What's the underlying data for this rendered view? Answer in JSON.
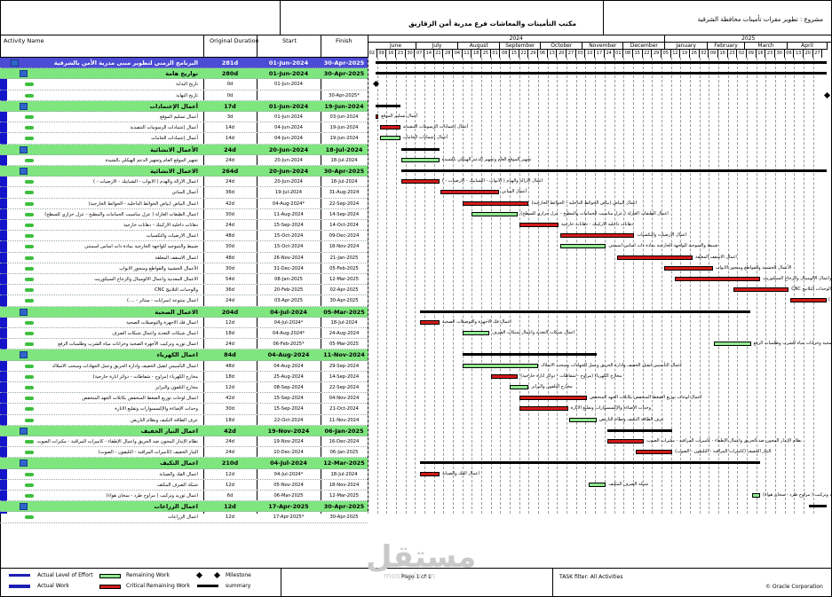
{
  "header": {
    "title": "مكتب التأمينات والمعاشات فرع مدرية أمن الزقازيق",
    "project": "مشروع : تطوير مقرات تأمينات محافظة الشرقية"
  },
  "columns": {
    "activity": "Activity Name",
    "duration": "Original Duration",
    "start": "Start",
    "finish": "Finish"
  },
  "timeline": {
    "years": [
      "2024",
      "2025"
    ],
    "months": [
      "June",
      "July",
      "August",
      "September",
      "October",
      "November",
      "December",
      "January",
      "February",
      "March",
      "April"
    ],
    "weeks": [
      "02",
      "09",
      "16",
      "23",
      "30",
      "07",
      "14",
      "21",
      "28",
      "04",
      "11",
      "18",
      "25",
      "01",
      "08",
      "15",
      "22",
      "29",
      "06",
      "13",
      "20",
      "27",
      "03",
      "10",
      "17",
      "24",
      "01",
      "08",
      "15",
      "22",
      "29",
      "05",
      "12",
      "19",
      "26",
      "02",
      "09",
      "16",
      "23",
      "02",
      "09",
      "16",
      "23",
      "30",
      "06",
      "13",
      "20",
      "27"
    ]
  },
  "rows": [
    {
      "level": "wbs1",
      "name": "البرنامج الزمني لتطوير مبنى مدرية الأمن بالشرقية",
      "duration": "281d",
      "start": "01-Jun-2024",
      "finish": "30-Apr-2025"
    },
    {
      "level": "wbs2",
      "name": "تواريخ هامة",
      "duration": "280d",
      "start": "01-Jun-2024",
      "finish": "30-Apr-2025"
    },
    {
      "level": "task",
      "name": "تاريخ البداية",
      "duration": "0d",
      "start": "01-Jun-2024",
      "finish": ""
    },
    {
      "level": "task",
      "name": "تاريخ النهاية",
      "duration": "0d",
      "start": "",
      "finish": "30-Apr-2025*"
    },
    {
      "level": "wbs2",
      "name": "أعمال الإعتمادات",
      "duration": "17d",
      "start": "01-Jun-2024",
      "finish": "19-Jun-2024"
    },
    {
      "level": "task",
      "name": "أعمال تسليم الموقع",
      "duration": "3d",
      "start": "01-Jun-2024",
      "finish": "03-Jun-2024"
    },
    {
      "level": "task",
      "name": "أعمال إعتمادات الرسومات التنفيذية",
      "duration": "14d",
      "start": "04-Jun-2024",
      "finish": "19-Jun-2024"
    },
    {
      "level": "task",
      "name": "أعمال إعتمادات الخامات",
      "duration": "14d",
      "start": "04-Jun-2024",
      "finish": "19-Jun-2024"
    },
    {
      "level": "wbs2",
      "name": "الأعمال الانشائية",
      "duration": "24d",
      "start": "20-Jun-2024",
      "finish": "18-Jul-2024"
    },
    {
      "level": "task",
      "name": "تجهيز الموقع العام وتجهيز الدعم الهيكلي بالشيدة",
      "duration": "24d",
      "start": "20-Jun-2024",
      "finish": "18-Jul-2024"
    },
    {
      "level": "wbs2",
      "name": "الاعمال الانشائية",
      "duration": "264d",
      "start": "20-Jun-2024",
      "finish": "30-Apr-2025"
    },
    {
      "level": "task",
      "name": "اعمال الازالة والهدم ( الابواب - الشبابيك - الارضيات - )",
      "duration": "24d",
      "start": "20-Jun-2024",
      "finish": "18-Jul-2024"
    },
    {
      "level": "task",
      "name": "أعمال المباني",
      "duration": "36d",
      "start": "19-Jul-2024",
      "finish": "31-Aug-2024"
    },
    {
      "level": "task",
      "name": "اعمال البياض (بياض الحوائط الداخلية - الحوائط الخارجية)",
      "duration": "42d",
      "start": "04-Aug-2024*",
      "finish": "22-Sep-2024"
    },
    {
      "level": "task",
      "name": "اعمال الطبقات العازلة ( عزل مناسيب الحمامات والمطبخ - عزل حراري للسطح)",
      "duration": "30d",
      "start": "11-Aug-2024",
      "finish": "14-Sep-2024"
    },
    {
      "level": "task",
      "name": "دهانات داخلية الاركيتك - دهانات خارجية",
      "duration": "24d",
      "start": "15-Sep-2024",
      "finish": "14-Oct-2024"
    },
    {
      "level": "task",
      "name": "اعمال الارضيات والتكسيات",
      "duration": "48d",
      "start": "15-Oct-2024",
      "finish": "09-Dec-2024"
    },
    {
      "level": "task",
      "name": "ضبيط والتموجيد للواجهة الخارجية بمادة ذات اساس اسمنتي",
      "duration": "30d",
      "start": "15-Oct-2024",
      "finish": "18-Nov-2024"
    },
    {
      "level": "task",
      "name": "اعمال الاسقف المعلقة",
      "duration": "48d",
      "start": "26-Nov-2024",
      "finish": "21-Jan-2025"
    },
    {
      "level": "task",
      "name": "الأعمال الخشبية والقواطع ومنجور الابواب",
      "duration": "30d",
      "start": "31-Dec-2024",
      "finish": "05-Feb-2025"
    },
    {
      "level": "task",
      "name": "الاعمال المعدنية واعمال الالوميتال والزجاج السيكوريت",
      "duration": "54d",
      "start": "08-Jan-2025",
      "finish": "12-Mar-2025"
    },
    {
      "level": "task",
      "name": "والوحدات التلانيج CNC",
      "duration": "36d",
      "start": "20-Feb-2025",
      "finish": "02-Apr-2025"
    },
    {
      "level": "task",
      "name": "اعمال متنوعة (سرايات - ستائر - ....)",
      "duration": "24d",
      "start": "03-Apr-2025",
      "finish": "30-Apr-2025"
    },
    {
      "level": "wbs2",
      "name": "الاعمال الصحية",
      "duration": "204d",
      "start": "04-Jul-2024",
      "finish": "05-Mar-2025"
    },
    {
      "level": "task",
      "name": "اعمال فك الاجهزة والتوصيلات الصحية",
      "duration": "12d",
      "start": "04-Jul-2024*",
      "finish": "18-Jul-2024"
    },
    {
      "level": "task",
      "name": "اعمال شبكات التغذية واعمال شبكات الصرف",
      "duration": "18d",
      "start": "04-Aug-2024*",
      "finish": "24-Aug-2024"
    },
    {
      "level": "task",
      "name": "اعمال توريد وتركيب الأجهزة الصحية وخزانات مياه الشرب وطلمبات الرفع",
      "duration": "24d",
      "start": "06-Feb-2025*",
      "finish": "05-Mar-2025"
    },
    {
      "level": "wbs2",
      "name": "اعمال الكهرباء",
      "duration": "84d",
      "start": "04-Aug-2024",
      "finish": "11-Nov-2024"
    },
    {
      "level": "task",
      "name": "اعمال التأسيس لتقيل الخفيف وادارة الحريق وعمل الجهادات وسحب الاسلاك",
      "duration": "48d",
      "start": "04-Aug-2024",
      "finish": "29-Sep-2024"
    },
    {
      "level": "task",
      "name": "مخارج الكهرباء (مراوح - شفاطات - دوائر انارة خارجية)",
      "duration": "18d",
      "start": "25-Aug-2024",
      "finish": "14-Sep-2024"
    },
    {
      "level": "task",
      "name": "مخارج التلفون والبرايز",
      "duration": "12d",
      "start": "08-Sep-2024",
      "finish": "22-Sep-2024"
    },
    {
      "level": "task",
      "name": "اعمال لوحات توزيع الضغط المنخفض بكابلات الجهد المنخفض",
      "duration": "42d",
      "start": "15-Sep-2024",
      "finish": "04-Nov-2024"
    },
    {
      "level": "task",
      "name": "وحدات الإضاءة والإكسسوارات وتقليع الانارة",
      "duration": "30d",
      "start": "15-Sep-2024",
      "finish": "21-Oct-2024"
    },
    {
      "level": "task",
      "name": "عرف الطاقة التكيف ونظام التاريض",
      "duration": "18d",
      "start": "22-Oct-2024",
      "finish": "11-Nov-2024"
    },
    {
      "level": "wbs2",
      "name": "اعمال التيار الخفيف",
      "duration": "42d",
      "start": "19-Nov-2024",
      "finish": "06-Jan-2025"
    },
    {
      "level": "task",
      "name": "نظام الإنذار المحون ضد الحريق واعمال الإطفاء - كاميرات المراقبة - مكبرات الصوت",
      "duration": "24d",
      "start": "19-Nov-2024",
      "finish": "16-Dec-2024"
    },
    {
      "level": "task",
      "name": "التيار الخفيف (كاميرات المراقبة - التليفون - الصوت)",
      "duration": "24d",
      "start": "10-Dec-2024",
      "finish": "06-Jan-2025"
    },
    {
      "level": "wbs2",
      "name": "اعمال التكيف",
      "duration": "210d",
      "start": "04-Jul-2024",
      "finish": "12-Mar-2025"
    },
    {
      "level": "task",
      "name": "اعمال الفك والصيانة",
      "duration": "12d",
      "start": "04-Jul-2024*",
      "finish": "18-Jul-2024"
    },
    {
      "level": "task",
      "name": "شبكة الصرف المكثف",
      "duration": "12d",
      "start": "05-Nov-2024",
      "finish": "18-Nov-2024"
    },
    {
      "level": "task",
      "name": "اعمال توريد وتركيب ( مراوح طرد - سخان هواء)",
      "duration": "6d",
      "start": "06-Mar-2025",
      "finish": "12-Mar-2025"
    },
    {
      "level": "wbs2",
      "name": "اعمال الزراعات",
      "duration": "12d",
      "start": "17-Apr-2025",
      "finish": "30-Apr-2025"
    },
    {
      "level": "task",
      "name": "اعمال الزراعات",
      "duration": "12d",
      "start": "17-Apr-2025*",
      "finish": "30-Apr-2025"
    }
  ],
  "gantt_labels": [
    "تاريخ البداية ,01-Jun-2024",
    "أعمال الإعتمادات ,19-Jun-2024",
    "أعمال تسليم الموقع",
    "أعمال إعتمادات الرسومات التنفيذية",
    "أعمال إعتمادات الخامات",
    "الأعمال الانشائية ,18-Jul-2024",
    "تجهيز الموقع العام وتجهيز الدعم الهيكلي بالشيدة",
    "اعمال الصحية ,05-Mar-2025",
    "اعمال الكهرباء ,11-Nov-2024",
    "اعمال التيار الخفيف ,06-Jan-2025",
    "اعمال التكيف ,12-Mar-2025"
  ],
  "legend": {
    "actual_level": "Actual Level of Effort",
    "actual_work": "Actual Work",
    "remaining": "Remaining Work",
    "critical": "Critical Remaining Work",
    "milestone": "Milestone",
    "summary": "summary",
    "page": "Page 1 of 1",
    "filter": "TASK filter: All Activities",
    "copyright": "© Oracle Corporation"
  },
  "watermark": {
    "arabic": "مستقل",
    "latin": "mostaql.com"
  },
  "colors": {
    "wbs1": "#4b4bd4",
    "wbs2": "#7fe67f",
    "critical": "#d11a1a",
    "remaining": "#8fe88f",
    "summary": "#000000"
  }
}
